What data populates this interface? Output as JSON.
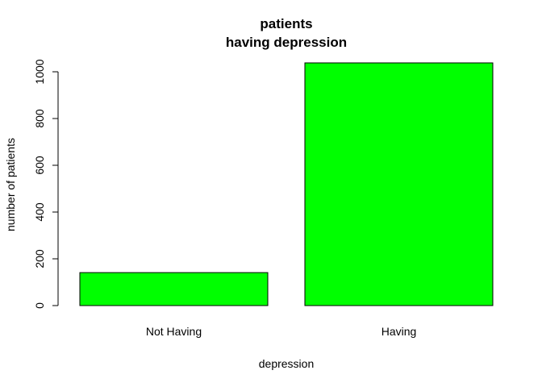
{
  "chart_data": {
    "type": "bar",
    "title_line1": "patients",
    "title_line2": "having depression",
    "xlabel": "depression",
    "ylabel": "number of patients",
    "categories": [
      "Not Having",
      "Having"
    ],
    "values": [
      141,
      1038
    ],
    "ylim": [
      0,
      1038
    ],
    "y_ticks": [
      "0",
      "200",
      "400",
      "600",
      "800",
      "1000"
    ],
    "grid": false,
    "bar_color": "#00ff00",
    "bar_border_color": "#000000"
  }
}
